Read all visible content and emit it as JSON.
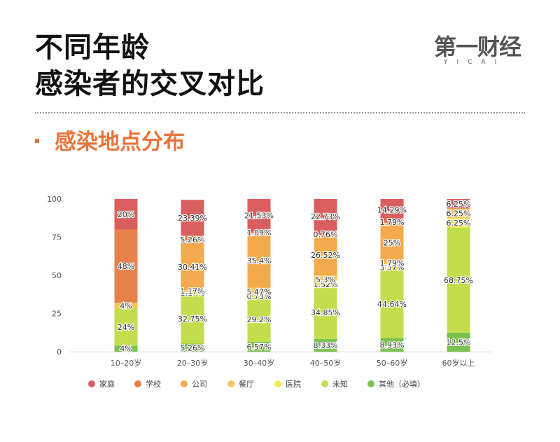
{
  "header": {
    "title_line1": "不同年龄",
    "title_line2": "感染者的交叉对比",
    "section_title": "感染地点分布"
  },
  "brand": {
    "name": "第一财经",
    "sub": "YICAI"
  },
  "colors": {
    "section": "#e8743b",
    "家庭": "#d95f5f",
    "学校": "#e8824b",
    "公司": "#f2aa4c",
    "餐厅": "#f6c65b",
    "医院": "#f8e552",
    "未知": "#c3de4c",
    "其他（必填）": "#7cc24e"
  },
  "chart_data": {
    "type": "bar",
    "stacked": true,
    "categories": [
      "10–20岁",
      "20–30岁",
      "30–40岁",
      "40–50岁",
      "50–60岁",
      "60岁以上"
    ],
    "ylim": [
      0,
      100
    ],
    "yticks": [
      "0",
      "25",
      "50",
      "75",
      "100"
    ],
    "legend_position": "bottom",
    "series": [
      {
        "name": "其他（必填）",
        "values": [
          4,
          5.26,
          6.57,
          8.33,
          8.93,
          12.5
        ],
        "labels": [
          "4%",
          "5.26%",
          "6.57%",
          "8.33%",
          "8.93%",
          "12.5%"
        ]
      },
      {
        "name": "未知",
        "values": [
          24,
          32.75,
          29.2,
          34.85,
          44.64,
          68.75
        ],
        "labels": [
          "24%",
          "32.75%",
          "29.2%",
          "34.85%",
          "44.64%",
          "68.75%"
        ]
      },
      {
        "name": "医院",
        "values": [
          0,
          1.17,
          0.73,
          1.52,
          3.57,
          6.25
        ],
        "labels": [
          "",
          "1.17%",
          "0.73%",
          "1.52%",
          "3.57%",
          "6.25%"
        ]
      },
      {
        "name": "餐厅",
        "values": [
          4,
          1.17,
          5.47,
          5.3,
          1.79,
          6.25
        ],
        "labels": [
          "4%",
          "1.17%",
          "5.47%",
          "5.3%",
          "1.79%",
          "6.25%"
        ]
      },
      {
        "name": "公司",
        "values": [
          0,
          30.41,
          35.4,
          26.52,
          25,
          0
        ],
        "labels": [
          "",
          "30.41%",
          "35.4%",
          "26.52%",
          "25%",
          ""
        ]
      },
      {
        "name": "学校",
        "values": [
          48,
          5.26,
          1.09,
          0.76,
          1.79,
          0
        ],
        "labels": [
          "48%",
          "5.26%",
          "1.09%",
          "0.76%",
          "1.79%",
          ""
        ]
      },
      {
        "name": "家庭",
        "values": [
          20,
          23.39,
          21.53,
          22.73,
          14.29,
          6.25
        ],
        "labels": [
          "20%",
          "23.39%",
          "21.53%",
          "22.73%",
          "14.29%",
          "6.25%"
        ]
      }
    ],
    "legend_order": [
      "家庭",
      "学校",
      "公司",
      "餐厅",
      "医院",
      "未知",
      "其他（必填）"
    ]
  }
}
